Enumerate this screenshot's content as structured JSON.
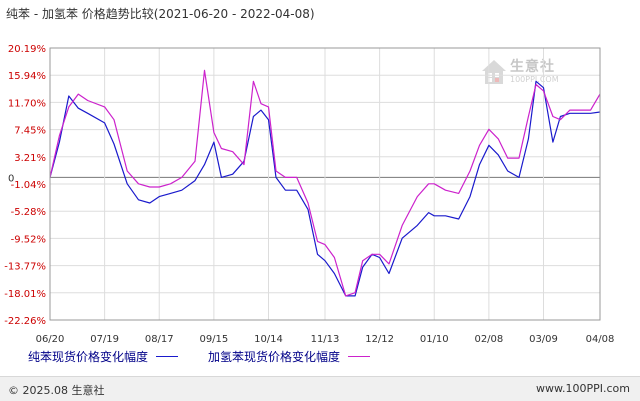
{
  "title": "纯苯 - 加氢苯 价格趋势比较(2021-06-20 - 2022-04-08)",
  "watermark": {
    "text": "生意社",
    "sub": "100PPI.COM",
    "icon": "house-logo-icon"
  },
  "footer": {
    "left": "© 2025.08 生意社",
    "right": "www.100PPI.com"
  },
  "colors": {
    "series1": "#1a1acc",
    "series2": "#cc22cc",
    "grid": "#dddddd",
    "axis": "#999999",
    "ytick": "#cc0000",
    "zero": "#777777"
  },
  "chart_data": {
    "type": "line",
    "title": "纯苯 - 加氢苯 价格趋势比较(2021-06-20 - 2022-04-08)",
    "xlabel": "",
    "ylabel": "",
    "x_tick_labels": [
      "06/20",
      "07/19",
      "08/17",
      "09/15",
      "10/14",
      "11/13",
      "12/12",
      "01/10",
      "02/08",
      "03/09",
      "04/08"
    ],
    "x_tick_dates": [
      "2021-06-20",
      "2021-07-19",
      "2021-08-17",
      "2021-09-15",
      "2021-10-14",
      "2021-11-13",
      "2021-12-12",
      "2022-01-10",
      "2022-02-08",
      "2022-03-09",
      "2022-04-08"
    ],
    "y_tick_labels": [
      "20.19%",
      "15.94%",
      "11.70%",
      "7.45%",
      "3.21%",
      "-1.04%",
      "-5.28%",
      "-9.52%",
      "-13.77%",
      "-18.01%",
      "-22.26%"
    ],
    "zero_label": "0",
    "ylim": [
      -22.26,
      20.19
    ],
    "x_start": "2021-06-20",
    "x_end": "2022-04-08",
    "grid": true,
    "legend_position": "bottom-left",
    "series": [
      {
        "name": "纯苯现货价格变化幅度",
        "color": "#1a1acc",
        "x": [
          "2021-06-20",
          "2021-06-25",
          "2021-06-30",
          "2021-07-05",
          "2021-07-10",
          "2021-07-19",
          "2021-07-24",
          "2021-07-31",
          "2021-08-06",
          "2021-08-12",
          "2021-08-17",
          "2021-08-23",
          "2021-08-29",
          "2021-09-05",
          "2021-09-10",
          "2021-09-15",
          "2021-09-19",
          "2021-09-25",
          "2021-10-01",
          "2021-10-06",
          "2021-10-10",
          "2021-10-14",
          "2021-10-18",
          "2021-10-23",
          "2021-10-29",
          "2021-11-04",
          "2021-11-09",
          "2021-11-13",
          "2021-11-18",
          "2021-11-24",
          "2021-11-29",
          "2021-12-03",
          "2021-12-08",
          "2021-12-12",
          "2021-12-17",
          "2021-12-24",
          "2022-01-01",
          "2022-01-07",
          "2022-01-10",
          "2022-01-16",
          "2022-01-23",
          "2022-01-29",
          "2022-02-03",
          "2022-02-08",
          "2022-02-13",
          "2022-02-18",
          "2022-02-24",
          "2022-03-01",
          "2022-03-05",
          "2022-03-09",
          "2022-03-14",
          "2022-03-18",
          "2022-03-23",
          "2022-03-28",
          "2022-04-03",
          "2022-04-08"
        ],
        "y": [
          0.0,
          5.5,
          12.7,
          10.8,
          10.0,
          8.5,
          5.2,
          -1.0,
          -3.5,
          -4.0,
          -3.0,
          -2.5,
          -2.0,
          -0.5,
          2.0,
          5.5,
          0.0,
          0.5,
          2.5,
          9.5,
          10.5,
          9.0,
          0.0,
          -2.0,
          -2.0,
          -5.0,
          -12.0,
          -13.0,
          -15.0,
          -18.5,
          -18.5,
          -14.0,
          -12.0,
          -12.5,
          -15.0,
          -9.5,
          -7.5,
          -5.5,
          -6.0,
          -6.0,
          -6.5,
          -3.0,
          2.0,
          5.0,
          3.5,
          1.0,
          0.0,
          6.0,
          15.0,
          14.0,
          5.5,
          9.5,
          10.0,
          10.0,
          10.0,
          10.2
        ]
      },
      {
        "name": "加氢苯现货价格变化幅度",
        "color": "#cc22cc",
        "x": [
          "2021-06-20",
          "2021-06-25",
          "2021-06-30",
          "2021-07-05",
          "2021-07-10",
          "2021-07-19",
          "2021-07-24",
          "2021-07-31",
          "2021-08-06",
          "2021-08-12",
          "2021-08-17",
          "2021-08-23",
          "2021-08-29",
          "2021-09-05",
          "2021-09-10",
          "2021-09-15",
          "2021-09-19",
          "2021-09-25",
          "2021-10-01",
          "2021-10-06",
          "2021-10-10",
          "2021-10-14",
          "2021-10-18",
          "2021-10-23",
          "2021-10-29",
          "2021-11-04",
          "2021-11-09",
          "2021-11-13",
          "2021-11-18",
          "2021-11-24",
          "2021-11-29",
          "2021-12-03",
          "2021-12-08",
          "2021-12-12",
          "2021-12-17",
          "2021-12-24",
          "2022-01-01",
          "2022-01-07",
          "2022-01-10",
          "2022-01-16",
          "2022-01-23",
          "2022-01-29",
          "2022-02-03",
          "2022-02-08",
          "2022-02-13",
          "2022-02-18",
          "2022-02-24",
          "2022-03-01",
          "2022-03-05",
          "2022-03-09",
          "2022-03-14",
          "2022-03-18",
          "2022-03-23",
          "2022-03-28",
          "2022-04-03",
          "2022-04-08"
        ],
        "y": [
          0.0,
          6.5,
          11.0,
          13.0,
          12.0,
          11.0,
          9.0,
          1.0,
          -1.0,
          -1.5,
          -1.5,
          -1.0,
          0.0,
          2.5,
          16.7,
          7.0,
          4.5,
          4.0,
          2.0,
          15.0,
          11.5,
          11.0,
          1.0,
          0.0,
          0.0,
          -4.0,
          -10.0,
          -10.5,
          -12.5,
          -18.5,
          -18.0,
          -13.0,
          -12.0,
          -12.0,
          -13.5,
          -7.5,
          -3.0,
          -1.0,
          -1.0,
          -2.0,
          -2.5,
          1.0,
          5.0,
          7.5,
          6.0,
          3.0,
          3.0,
          9.5,
          14.5,
          13.5,
          9.5,
          9.0,
          10.5,
          10.5,
          10.5,
          13.0
        ]
      }
    ]
  }
}
